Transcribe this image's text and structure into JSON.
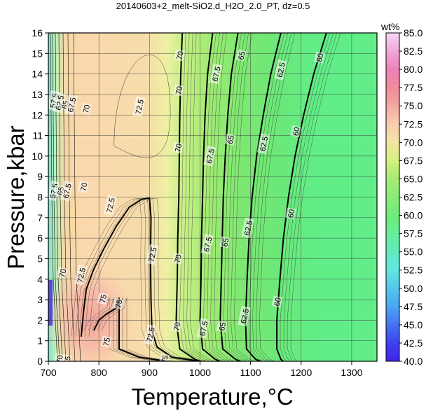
{
  "chart_data": {
    "type": "heatmap",
    "title": "20140603+2_melt-SiO2.d_H2O_2.0_PT, dz=0.5",
    "xlabel": "Temperature,°C",
    "ylabel": "Pressure,kbar",
    "xlim": [
      700,
      1350
    ],
    "ylim": [
      0,
      16
    ],
    "x_ticks": [
      700,
      800,
      900,
      1000,
      1100,
      1200,
      1300
    ],
    "y_ticks": [
      0,
      1,
      2,
      3,
      4,
      5,
      6,
      7,
      8,
      9,
      10,
      11,
      12,
      13,
      14,
      15,
      16
    ],
    "grid": true,
    "colorbar": {
      "title": "wt%",
      "range": [
        40.0,
        85.0
      ],
      "ticks": [
        "85.0",
        "82.5",
        "80.0",
        "77.5",
        "75.0",
        "72.5",
        "70.0",
        "67.5",
        "65.0",
        "62.5",
        "60.0",
        "57.5",
        "55.0",
        "52.5",
        "50.0",
        "47.5",
        "45.0",
        "42.5",
        "40.0"
      ]
    },
    "contour_interval": 0.5,
    "bold_contours": [
      {
        "level": 75,
        "label": "75",
        "points": [
          [
            790,
            1.5
          ],
          [
            800,
            2.0
          ],
          [
            815,
            2.3
          ],
          [
            835,
            2.6
          ],
          [
            840,
            3.1
          ],
          [
            840,
            2.0
          ],
          [
            840,
            0.6
          ],
          [
            880,
            0.2
          ],
          [
            935,
            0.0
          ]
        ]
      },
      {
        "level": 72.5,
        "label": "72.5",
        "points": [
          [
            765,
            1.2
          ],
          [
            770,
            2.5
          ],
          [
            775,
            3.5
          ],
          [
            790,
            4.5
          ],
          [
            810,
            5.5
          ],
          [
            835,
            6.6
          ],
          [
            860,
            7.5
          ],
          [
            885,
            7.9
          ],
          [
            900,
            7.95
          ],
          [
            903,
            7.0
          ],
          [
            902,
            5.0
          ],
          [
            903,
            3.0
          ],
          [
            905,
            1.5
          ],
          [
            915,
            0.7
          ],
          [
            945,
            0.2
          ],
          [
            1000,
            0.0
          ]
        ]
      },
      {
        "level": 70,
        "label": "70",
        "points": [
          [
            965,
            16
          ],
          [
            962,
            14
          ],
          [
            960,
            12
          ],
          [
            959,
            10
          ],
          [
            958,
            8
          ],
          [
            956,
            6
          ],
          [
            955,
            4
          ],
          [
            953,
            2
          ],
          [
            960,
            0.6
          ],
          [
            990,
            0.1
          ],
          [
            1000,
            0
          ]
        ]
      },
      {
        "level": 67.5,
        "label": "67.5",
        "points": [
          [
            1025,
            16
          ],
          [
            1015,
            14
          ],
          [
            1010,
            12
          ],
          [
            1007,
            10
          ],
          [
            1005,
            8
          ],
          [
            1003,
            6
          ],
          [
            1002,
            4
          ],
          [
            1000,
            2
          ],
          [
            1005,
            0.6
          ],
          [
            1030,
            0.1
          ],
          [
            1040,
            0
          ]
        ]
      },
      {
        "level": 65,
        "label": "65",
        "points": [
          [
            1075,
            16
          ],
          [
            1062,
            14
          ],
          [
            1055,
            12
          ],
          [
            1050,
            10
          ],
          [
            1046,
            8
          ],
          [
            1044,
            6
          ],
          [
            1042,
            4
          ],
          [
            1040,
            2
          ],
          [
            1045,
            0.6
          ],
          [
            1070,
            0.1
          ],
          [
            1080,
            0
          ]
        ]
      },
      {
        "level": 62.5,
        "label": "62.5",
        "points": [
          [
            1160,
            16
          ],
          [
            1140,
            14
          ],
          [
            1125,
            12
          ],
          [
            1112,
            10
          ],
          [
            1103,
            8
          ],
          [
            1097,
            6
          ],
          [
            1093,
            4
          ],
          [
            1090,
            2
          ],
          [
            1092,
            0.6
          ],
          [
            1110,
            0.1
          ],
          [
            1120,
            0
          ]
        ]
      },
      {
        "level": 60,
        "label": "60",
        "points": [
          [
            1250,
            16
          ],
          [
            1225,
            14
          ],
          [
            1205,
            12
          ],
          [
            1188,
            10
          ],
          [
            1175,
            8
          ],
          [
            1165,
            6
          ],
          [
            1158,
            4
          ],
          [
            1152,
            2
          ],
          [
            1152,
            0.6
          ],
          [
            1160,
            0.1
          ],
          [
            1165,
            0
          ]
        ]
      }
    ],
    "contour_labels": [
      {
        "text": "72.5",
        "x": 880,
        "y": 12.4
      },
      {
        "text": "72.5",
        "x": 823,
        "y": 7.6
      },
      {
        "text": "72.5",
        "x": 765,
        "y": 4.2
      },
      {
        "text": "72.5",
        "x": 906,
        "y": 5.2
      },
      {
        "text": "72.5",
        "x": 902,
        "y": 1.3
      },
      {
        "text": "75",
        "x": 839,
        "y": 2.8
      },
      {
        "text": "75",
        "x": 808,
        "y": 3.05
      },
      {
        "text": "75",
        "x": 815,
        "y": 0.95
      },
      {
        "text": "75",
        "x": 930,
        "y": 0.1
      },
      {
        "text": "70",
        "x": 960,
        "y": 14.9
      },
      {
        "text": "70",
        "x": 958,
        "y": 13.2
      },
      {
        "text": "70",
        "x": 957,
        "y": 10.4
      },
      {
        "text": "70",
        "x": 956,
        "y": 5.0
      },
      {
        "text": "70",
        "x": 954,
        "y": 1.7
      },
      {
        "text": "70",
        "x": 770,
        "y": 8.5
      },
      {
        "text": "70",
        "x": 775,
        "y": 12.3
      },
      {
        "text": "70",
        "x": 728,
        "y": 4.3
      },
      {
        "text": "67.5",
        "x": 1032,
        "y": 14.0
      },
      {
        "text": "67.5",
        "x": 1020,
        "y": 10.0
      },
      {
        "text": "67.5",
        "x": 1015,
        "y": 5.7
      },
      {
        "text": "67.5",
        "x": 1007,
        "y": 1.6
      },
      {
        "text": "65",
        "x": 1082,
        "y": 14.9
      },
      {
        "text": "65",
        "x": 1060,
        "y": 10.8
      },
      {
        "text": "65",
        "x": 1050,
        "y": 5.8
      },
      {
        "text": "65",
        "x": 1044,
        "y": 1.7
      },
      {
        "text": "62.5",
        "x": 1160,
        "y": 14.2
      },
      {
        "text": "62.5",
        "x": 1126,
        "y": 10.6
      },
      {
        "text": "62.5",
        "x": 1095,
        "y": 6.5
      },
      {
        "text": "62.5",
        "x": 1088,
        "y": 2.2
      },
      {
        "text": "60",
        "x": 1237,
        "y": 14.8
      },
      {
        "text": "60",
        "x": 1190,
        "y": 11.2
      },
      {
        "text": "60",
        "x": 1180,
        "y": 7.2
      },
      {
        "text": "60",
        "x": 1153,
        "y": 2.9
      },
      {
        "text": "57.5",
        "x": 711,
        "y": 12.7
      },
      {
        "text": "62.5",
        "x": 722,
        "y": 12.6
      },
      {
        "text": "65",
        "x": 733,
        "y": 12.5
      },
      {
        "text": "67.5",
        "x": 746,
        "y": 12.5
      },
      {
        "text": "57.5",
        "x": 711,
        "y": 8.3
      },
      {
        "text": "65",
        "x": 724,
        "y": 8.3
      },
      {
        "text": "67.5",
        "x": 737,
        "y": 8.3
      },
      {
        "text": "70",
        "x": 722,
        "y": 0.1
      },
      {
        "text": "65",
        "x": 737,
        "y": 0.05
      }
    ]
  }
}
